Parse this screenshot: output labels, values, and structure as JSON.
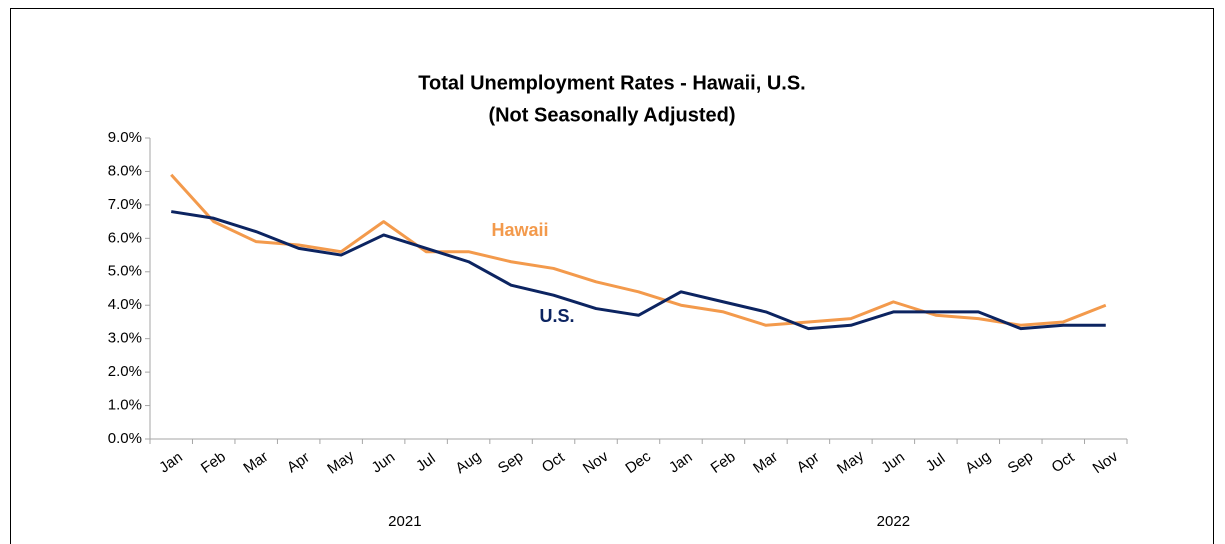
{
  "chart_data": {
    "type": "line",
    "title": "Total Unemployment Rates - Hawaii, U.S.",
    "subtitle": "(Not Seasonally Adjusted)",
    "category_groups": [
      {
        "label": "2021",
        "categories": [
          "Jan",
          "Feb",
          "Mar",
          "Apr",
          "May",
          "Jun",
          "Jul",
          "Aug",
          "Sep",
          "Oct",
          "Nov",
          "Dec"
        ]
      },
      {
        "label": "2022",
        "categories": [
          "Jan",
          "Feb",
          "Mar",
          "Apr",
          "May",
          "Jun",
          "Jul",
          "Aug",
          "Sep",
          "Oct",
          "Nov"
        ]
      }
    ],
    "series": [
      {
        "name": "Hawaii",
        "color": "#f39a4c",
        "values": [
          7.9,
          6.5,
          5.9,
          5.8,
          5.6,
          6.5,
          5.6,
          5.6,
          5.3,
          5.1,
          4.7,
          4.4,
          4.0,
          3.8,
          3.4,
          3.5,
          3.6,
          4.1,
          3.7,
          3.6,
          3.4,
          3.5,
          4.0
        ]
      },
      {
        "name": "U.S.",
        "color": "#0c2461",
        "values": [
          6.8,
          6.6,
          6.2,
          5.7,
          5.5,
          6.1,
          5.7,
          5.3,
          4.6,
          4.3,
          3.9,
          3.7,
          4.4,
          4.1,
          3.8,
          3.3,
          3.4,
          3.8,
          3.8,
          3.8,
          3.3,
          3.4,
          3.4
        ]
      }
    ],
    "ylim": [
      0,
      9
    ],
    "yticks": [
      {
        "value": 0,
        "label": "0.0%"
      },
      {
        "value": 1,
        "label": "1.0%"
      },
      {
        "value": 2,
        "label": "2.0%"
      },
      {
        "value": 3,
        "label": "3.0%"
      },
      {
        "value": 4,
        "label": "4.0%"
      },
      {
        "value": 5,
        "label": "5.0%"
      },
      {
        "value": 6,
        "label": "6.0%"
      },
      {
        "value": 7,
        "label": "7.0%"
      },
      {
        "value": 8,
        "label": "8.0%"
      },
      {
        "value": 9,
        "label": "9.0%"
      }
    ],
    "grid": false
  }
}
